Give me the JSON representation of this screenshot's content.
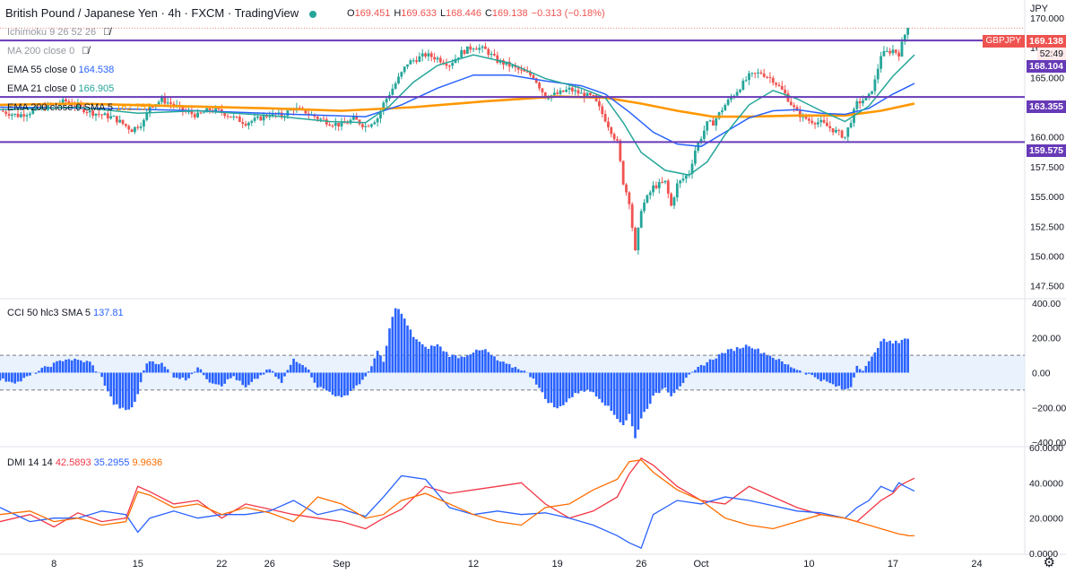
{
  "header": {
    "title": "British Pound / Japanese Yen · 4h · FXCM · TradingView",
    "ohlc": [
      {
        "k": "O",
        "v": "169.451"
      },
      {
        "k": "H",
        "v": "169.633"
      },
      {
        "k": "L",
        "v": "168.446"
      },
      {
        "k": "C",
        "v": "169.138"
      },
      {
        "k": "",
        "v": "−0.313 (−0.18%)"
      }
    ],
    "currency": "JPY"
  },
  "legend": {
    "ichimoku": "Ichimoku 9 26 52 26",
    "ma200": "MA 200 close 0",
    "ema55_label": "EMA 55 close 0",
    "ema55_value": "164.538",
    "ema21_label": "EMA 21 close 0",
    "ema21_value": "166.905",
    "ema200_label": "EMA 200 close 0 SMA 5",
    "ema200_value": "162.757",
    "cci_label": "CCI 50 hlc3 SMA 5",
    "cci_value": "137.81",
    "dmi_label": "DMI 14 14",
    "dmi_plus": "42.5893",
    "dmi_minus": "35.2955",
    "dmi_adx": "9.9636"
  },
  "price_tags": {
    "last": "169.138",
    "symbol": "GBPJPY",
    "countdown": "52:49",
    "level1": "168.104",
    "level2": "163.355",
    "level3": "159.575"
  },
  "colors": {
    "up": "#26a69a",
    "down": "#ef5350",
    "ema21": "#26a69a",
    "ema55": "#2962ff",
    "ema200": "#ff9800",
    "hline": "#673ab7",
    "cci": "#2962ff",
    "dmi_plus": "#f23645",
    "dmi_minus": "#2962ff",
    "dmi_adx": "#ff6d00"
  },
  "chart_data": [
    {
      "type": "candlestick",
      "title": "British Pound / Japanese Yen · 4h · FXCM",
      "ylim": [
        146.5,
        171.5
      ],
      "y_ticks": [
        "147.500",
        "150.000",
        "152.500",
        "155.000",
        "157.500",
        "160.000",
        "162.500",
        "165.000",
        "167.500",
        "170.000"
      ],
      "x_ticks": [
        {
          "label": "8",
          "day": 8
        },
        {
          "label": "15",
          "day": 15
        },
        {
          "label": "22",
          "day": 22
        },
        {
          "label": "26",
          "day": 26
        },
        {
          "label": "Sep",
          "day": 32
        },
        {
          "label": "12",
          "day": 43
        },
        {
          "label": "19",
          "day": 50
        },
        {
          "label": "26",
          "day": 57
        },
        {
          "label": "Oct",
          "day": 62
        },
        {
          "label": "10",
          "day": 71
        },
        {
          "label": "17",
          "day": 78
        },
        {
          "label": "24",
          "day": 85
        }
      ],
      "xlim": [
        3.5,
        89
      ],
      "last_bar_day": 79.3,
      "horizontal_levels": [
        168.104,
        163.355,
        159.575
      ],
      "close_path": [
        [
          3.5,
          162.2
        ],
        [
          5,
          161.8
        ],
        [
          7,
          162.4
        ],
        [
          9,
          163.0
        ],
        [
          11,
          162.1
        ],
        [
          13,
          161.6
        ],
        [
          14.5,
          160.6
        ],
        [
          15.5,
          161.3
        ],
        [
          16,
          162.6
        ],
        [
          17,
          163.1
        ],
        [
          18,
          162.7
        ],
        [
          19,
          162.1
        ],
        [
          20,
          161.8
        ],
        [
          21,
          162.3
        ],
        [
          22,
          162.1
        ],
        [
          23,
          161.6
        ],
        [
          24,
          161.2
        ],
        [
          25,
          161.5
        ],
        [
          26,
          161.9
        ],
        [
          27,
          161.8
        ],
        [
          28,
          162.4
        ],
        [
          29,
          162.1
        ],
        [
          30,
          161.6
        ],
        [
          31,
          161.2
        ],
        [
          32,
          161.0
        ],
        [
          33,
          161.5
        ],
        [
          34,
          160.9
        ],
        [
          35,
          161.6
        ],
        [
          35.5,
          162.8
        ],
        [
          36.5,
          164.5
        ],
        [
          37.5,
          166.2
        ],
        [
          39,
          166.9
        ],
        [
          40,
          166.6
        ],
        [
          41,
          166.1
        ],
        [
          42,
          167.1
        ],
        [
          43,
          167.6
        ],
        [
          44,
          167.3
        ],
        [
          45,
          166.4
        ],
        [
          46,
          166.0
        ],
        [
          47,
          165.5
        ],
        [
          48,
          165.1
        ],
        [
          49,
          163.4
        ],
        [
          50,
          163.6
        ],
        [
          51,
          164.0
        ],
        [
          52,
          163.6
        ],
        [
          53,
          163.3
        ],
        [
          54,
          161.5
        ],
        [
          55,
          159.5
        ],
        [
          55.5,
          156.2
        ],
        [
          56,
          154.6
        ],
        [
          56.5,
          150.3
        ],
        [
          57,
          154.0
        ],
        [
          58,
          155.8
        ],
        [
          59,
          156.2
        ],
        [
          59.5,
          154.2
        ],
        [
          60,
          156.0
        ],
        [
          61,
          157.0
        ],
        [
          61.5,
          158.9
        ],
        [
          62.5,
          161.1
        ],
        [
          63,
          161.2
        ],
        [
          64,
          162.7
        ],
        [
          65,
          163.9
        ],
        [
          66,
          165.1
        ],
        [
          67,
          165.4
        ],
        [
          68,
          164.8
        ],
        [
          69,
          163.6
        ],
        [
          70,
          162.0
        ],
        [
          71,
          161.4
        ],
        [
          72,
          161.2
        ],
        [
          73,
          160.6
        ],
        [
          74,
          160.0
        ],
        [
          74.5,
          161.4
        ],
        [
          75,
          162.8
        ],
        [
          76,
          163.4
        ],
        [
          76.5,
          164.7
        ],
        [
          77,
          166.9
        ],
        [
          78,
          167.3
        ],
        [
          78.5,
          167.0
        ],
        [
          79,
          168.6
        ],
        [
          79.3,
          169.5
        ],
        [
          79.6,
          169.7
        ],
        [
          79.8,
          169.1
        ]
      ],
      "ema21": [
        [
          3.5,
          162.3
        ],
        [
          10,
          162.5
        ],
        [
          15,
          162.0
        ],
        [
          20,
          162.2
        ],
        [
          26,
          161.8
        ],
        [
          31,
          161.3
        ],
        [
          34,
          161.2
        ],
        [
          36,
          162.6
        ],
        [
          38,
          164.6
        ],
        [
          40,
          166.0
        ],
        [
          43,
          166.9
        ],
        [
          46,
          166.2
        ],
        [
          49,
          164.9
        ],
        [
          52,
          164.1
        ],
        [
          54,
          163.3
        ],
        [
          55.5,
          161.2
        ],
        [
          57,
          158.7
        ],
        [
          59,
          157.2
        ],
        [
          61,
          156.8
        ],
        [
          62.5,
          157.9
        ],
        [
          64,
          160.2
        ],
        [
          66,
          162.7
        ],
        [
          68,
          163.9
        ],
        [
          70,
          163.2
        ],
        [
          72,
          162.2
        ],
        [
          74,
          161.3
        ],
        [
          76,
          162.6
        ],
        [
          78,
          165.1
        ],
        [
          79.8,
          166.9
        ]
      ],
      "ema55": [
        [
          3.5,
          162.5
        ],
        [
          12,
          162.4
        ],
        [
          20,
          162.2
        ],
        [
          28,
          161.9
        ],
        [
          34,
          161.7
        ],
        [
          37,
          162.7
        ],
        [
          40,
          164.1
        ],
        [
          43,
          165.2
        ],
        [
          46,
          165.2
        ],
        [
          49,
          164.7
        ],
        [
          52,
          164.3
        ],
        [
          54,
          163.6
        ],
        [
          56,
          162.1
        ],
        [
          58,
          160.4
        ],
        [
          60,
          159.4
        ],
        [
          62,
          159.2
        ],
        [
          64,
          160.4
        ],
        [
          66,
          161.6
        ],
        [
          68,
          162.2
        ],
        [
          70,
          162.3
        ],
        [
          72,
          162.0
        ],
        [
          74,
          161.9
        ],
        [
          76,
          162.4
        ],
        [
          78,
          163.6
        ],
        [
          79.8,
          164.5
        ]
      ],
      "ema200": [
        [
          3.5,
          162.7
        ],
        [
          10,
          162.8
        ],
        [
          18,
          162.6
        ],
        [
          26,
          162.4
        ],
        [
          32,
          162.2
        ],
        [
          38,
          162.5
        ],
        [
          44,
          163.0
        ],
        [
          50,
          163.4
        ],
        [
          54,
          163.3
        ],
        [
          57,
          162.8
        ],
        [
          60,
          162.2
        ],
        [
          63,
          161.7
        ],
        [
          66,
          161.7
        ],
        [
          70,
          161.8
        ],
        [
          74,
          161.8
        ],
        [
          77,
          162.2
        ],
        [
          79.8,
          162.8
        ]
      ]
    },
    {
      "type": "bar",
      "title": "CCI 50 hlc3 SMA 5",
      "ylim": [
        -420,
        420
      ],
      "y_ticks": [
        "400.00",
        "200.00",
        "0.00",
        "−200.00",
        "−400.00"
      ],
      "bands": [
        100,
        -100
      ],
      "x": [
        3.5,
        5,
        7,
        9,
        11,
        12,
        13,
        14,
        14.5,
        15,
        15.5,
        16,
        17,
        18,
        19,
        20,
        21,
        22,
        23,
        24,
        25,
        26,
        27,
        28,
        29,
        30,
        31,
        32,
        33,
        34,
        35,
        35.5,
        36,
        36.5,
        37,
        37.5,
        38,
        39,
        40,
        41,
        42,
        43,
        44,
        45,
        46,
        47,
        48,
        49,
        50,
        51,
        52,
        53,
        54,
        55,
        55.5,
        56,
        56.5,
        57,
        58,
        59,
        59.5,
        60,
        61,
        62,
        63,
        64,
        65,
        66,
        67,
        68,
        69,
        70,
        71,
        72,
        73,
        74,
        74.5,
        75,
        75.5,
        76,
        76.5,
        77,
        78,
        78.5,
        79,
        79.3,
        79.6,
        79.8
      ],
      "values": [
        -40,
        -55,
        20,
        80,
        60,
        -30,
        -180,
        -220,
        -200,
        -130,
        20,
        70,
        50,
        -20,
        -40,
        30,
        -50,
        -70,
        -20,
        -90,
        -30,
        20,
        -60,
        80,
        40,
        -80,
        -110,
        -150,
        -90,
        -30,
        120,
        60,
        250,
        380,
        340,
        270,
        210,
        140,
        160,
        100,
        90,
        120,
        130,
        70,
        40,
        20,
        -30,
        -150,
        -210,
        -150,
        -100,
        -110,
        -180,
        -260,
        -300,
        -240,
        -380,
        -260,
        -140,
        -80,
        -130,
        -90,
        -20,
        40,
        80,
        120,
        140,
        160,
        120,
        90,
        50,
        20,
        -10,
        -40,
        -70,
        -100,
        -80,
        40,
        20,
        60,
        110,
        190,
        170,
        180,
        200,
        190,
        160,
        137.81
      ]
    },
    {
      "type": "line",
      "title": "DMI 14 14",
      "ylim": [
        0,
        60
      ],
      "y_ticks": [
        "60.0000",
        "40.0000",
        "20.0000",
        "0.0000"
      ],
      "x": [
        3.5,
        6,
        8,
        10,
        12,
        14,
        15,
        16,
        18,
        20,
        22,
        24,
        26,
        28,
        30,
        32,
        34,
        35.5,
        37,
        39,
        41,
        43,
        45,
        47,
        49,
        51,
        53,
        55,
        56,
        57,
        58,
        60,
        62,
        64,
        66,
        68,
        70,
        72,
        74,
        75,
        76,
        77,
        78,
        78.5,
        79,
        79.3,
        79.8
      ],
      "series": [
        {
          "name": "+DI",
          "values": [
            18,
            22,
            15,
            23,
            18,
            20,
            38,
            35,
            28,
            30,
            20,
            28,
            25,
            22,
            20,
            18,
            14,
            20,
            25,
            38,
            34,
            36,
            38,
            40,
            28,
            20,
            24,
            32,
            45,
            54,
            50,
            38,
            30,
            28,
            38,
            32,
            26,
            22,
            20,
            18,
            24,
            30,
            34,
            38,
            40,
            41,
            42.5893
          ]
        },
        {
          "name": "−DI",
          "values": [
            26,
            18,
            20,
            20,
            24,
            22,
            12,
            20,
            24,
            20,
            22,
            22,
            24,
            30,
            22,
            25,
            21,
            32,
            44,
            42,
            26,
            22,
            24,
            22,
            23,
            20,
            16,
            10,
            6,
            3,
            22,
            30,
            28,
            32,
            30,
            27,
            24,
            23,
            20,
            26,
            30,
            38,
            35,
            40,
            38,
            37,
            35.2955
          ]
        },
        {
          "name": "ADX",
          "values": [
            22,
            24,
            18,
            20,
            16,
            18,
            35,
            33,
            26,
            28,
            22,
            26,
            23,
            18,
            32,
            28,
            20,
            22,
            30,
            34,
            28,
            22,
            18,
            16,
            26,
            28,
            36,
            42,
            52,
            53,
            46,
            36,
            30,
            20,
            16,
            14,
            18,
            22,
            20,
            18,
            16,
            14,
            12,
            11,
            10.5,
            10,
            9.9636
          ]
        }
      ]
    }
  ]
}
